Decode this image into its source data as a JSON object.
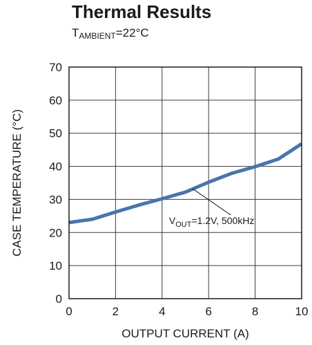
{
  "chart_data": {
    "type": "line",
    "title": "Thermal Results",
    "subtitle": {
      "prefix": "T",
      "sub": "AMBIENT",
      "suffix": "=22°C"
    },
    "xlabel": "OUTPUT CURRENT (A)",
    "ylabel": "CASE TEMPERATURE (°C)",
    "xlim": [
      0,
      10
    ],
    "ylim": [
      0,
      70
    ],
    "xticks": [
      "0",
      "2",
      "4",
      "6",
      "8",
      "10"
    ],
    "yticks": [
      "0",
      "10",
      "20",
      "30",
      "40",
      "50",
      "60",
      "70"
    ],
    "grid": true,
    "series": [
      {
        "name": "VOUT=1.2V, 500kHz",
        "color": "#4a74aa",
        "x": [
          0,
          1,
          2,
          3,
          4,
          5,
          6,
          7,
          8,
          9,
          10
        ],
        "y": [
          23,
          24,
          26.2,
          28.3,
          30.2,
          32.2,
          35.2,
          37.9,
          39.9,
          42.2,
          46.8
        ]
      }
    ],
    "annotation": {
      "prefix": "V",
      "sub": "OUT",
      "suffix": "=1.2V, 500kHz"
    }
  }
}
